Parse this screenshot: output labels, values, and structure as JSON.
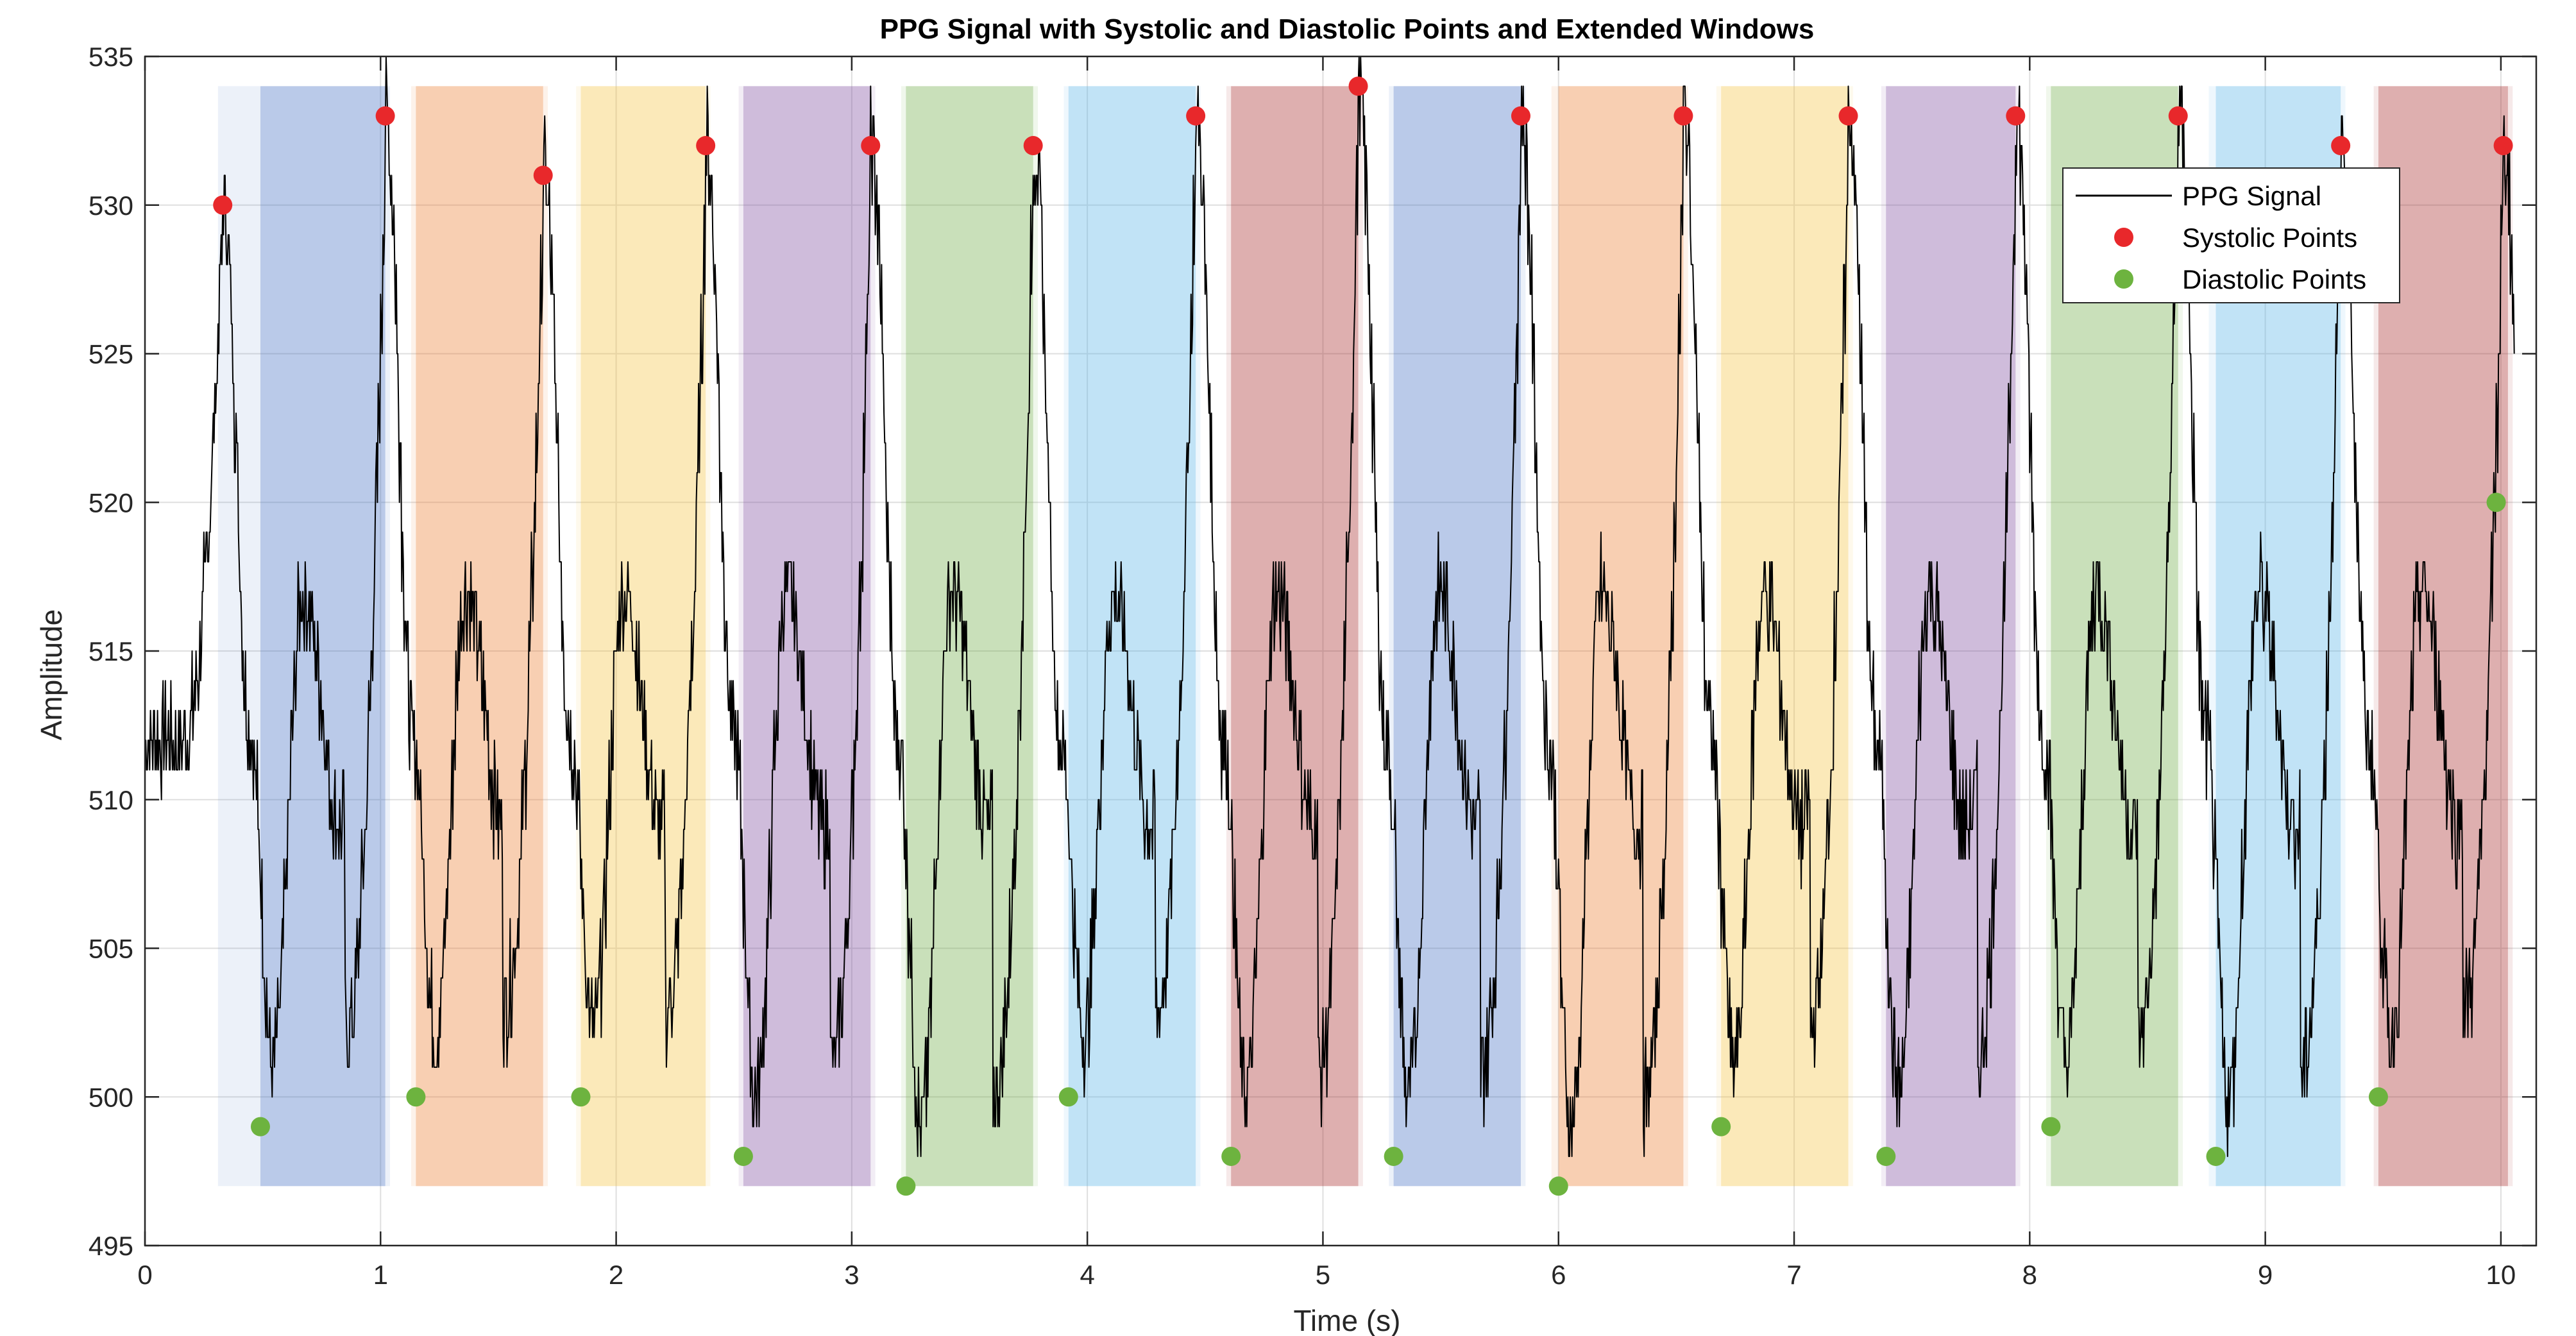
{
  "chart_data": {
    "type": "line",
    "title": "PPG Signal with Systolic and Diastolic Points and Extended Windows",
    "xlabel": "Time (s)",
    "ylabel": "Amplitude",
    "xlim": [
      0,
      10.15
    ],
    "ylim": [
      495,
      535
    ],
    "xticks": [
      0,
      1,
      2,
      3,
      4,
      5,
      6,
      7,
      8,
      9,
      10
    ],
    "yticks": [
      495,
      500,
      505,
      510,
      515,
      520,
      525,
      530,
      535
    ],
    "grid": true,
    "legend": {
      "position": "top-right",
      "entries": [
        "PPG Signal",
        "Systolic Points",
        "Diastolic Points"
      ]
    },
    "colors": {
      "signal": "#000000",
      "systolic": "#e8282b",
      "diastolic": "#6db33f",
      "windows": [
        "#4472c4",
        "#ed7d31",
        "#f5c342",
        "#7e4c9e",
        "#70ad47",
        "#5bb5e8",
        "#a52a2a"
      ]
    },
    "systolic_points": [
      {
        "t": 0.33,
        "amp": 530
      },
      {
        "t": 1.02,
        "amp": 533
      },
      {
        "t": 1.69,
        "amp": 531
      },
      {
        "t": 2.38,
        "amp": 532
      },
      {
        "t": 3.08,
        "amp": 532
      },
      {
        "t": 3.77,
        "amp": 532
      },
      {
        "t": 4.46,
        "amp": 533
      },
      {
        "t": 5.15,
        "amp": 534
      },
      {
        "t": 5.84,
        "amp": 533
      },
      {
        "t": 6.53,
        "amp": 533
      },
      {
        "t": 7.23,
        "amp": 533
      },
      {
        "t": 7.94,
        "amp": 533
      },
      {
        "t": 8.63,
        "amp": 533
      },
      {
        "t": 9.32,
        "amp": 532
      },
      {
        "t": 10.01,
        "amp": 532
      }
    ],
    "diastolic_points": [
      {
        "t": 0.49,
        "amp": 499
      },
      {
        "t": 1.15,
        "amp": 500
      },
      {
        "t": 1.85,
        "amp": 500
      },
      {
        "t": 2.54,
        "amp": 498
      },
      {
        "t": 3.23,
        "amp": 497
      },
      {
        "t": 3.92,
        "amp": 500
      },
      {
        "t": 4.61,
        "amp": 498
      },
      {
        "t": 5.3,
        "amp": 498
      },
      {
        "t": 6.0,
        "amp": 497
      },
      {
        "t": 6.69,
        "amp": 499
      },
      {
        "t": 7.39,
        "amp": 498
      },
      {
        "t": 8.09,
        "amp": 499
      },
      {
        "t": 8.79,
        "amp": 498
      },
      {
        "t": 9.48,
        "amp": 500
      },
      {
        "t": 9.98,
        "amp": 520
      }
    ],
    "windows": [
      {
        "start": 0.49,
        "end": 1.02
      },
      {
        "start": 1.15,
        "end": 1.69
      },
      {
        "start": 1.85,
        "end": 2.38
      },
      {
        "start": 2.54,
        "end": 3.08
      },
      {
        "start": 3.23,
        "end": 3.77
      },
      {
        "start": 3.92,
        "end": 4.46
      },
      {
        "start": 4.61,
        "end": 5.15
      },
      {
        "start": 5.3,
        "end": 5.84
      },
      {
        "start": 6.0,
        "end": 6.53
      },
      {
        "start": 6.69,
        "end": 7.23
      },
      {
        "start": 7.39,
        "end": 7.94
      },
      {
        "start": 8.09,
        "end": 8.63
      },
      {
        "start": 8.79,
        "end": 9.32
      },
      {
        "start": 9.48,
        "end": 10.03
      }
    ],
    "extended_windows": [
      {
        "start": 0.31,
        "end": 1.04
      },
      {
        "start": 1.13,
        "end": 1.71
      },
      {
        "start": 1.83,
        "end": 2.4
      },
      {
        "start": 2.52,
        "end": 3.1
      },
      {
        "start": 3.21,
        "end": 3.79
      },
      {
        "start": 3.9,
        "end": 4.48
      },
      {
        "start": 4.59,
        "end": 5.17
      },
      {
        "start": 5.28,
        "end": 5.86
      },
      {
        "start": 5.97,
        "end": 6.55
      },
      {
        "start": 6.67,
        "end": 7.25
      },
      {
        "start": 7.37,
        "end": 7.96
      },
      {
        "start": 8.07,
        "end": 8.65
      },
      {
        "start": 8.76,
        "end": 9.34
      },
      {
        "start": 9.46,
        "end": 10.05
      }
    ],
    "window_amp_range": [
      497,
      534
    ],
    "signal": {
      "fs": 100,
      "t_end": 10.05,
      "initial_level": 512,
      "wave_shape": {
        "rise": 0.17,
        "fall": 0.21,
        "dicrotic_peak_t": 0.34,
        "dicrotic_peak_amp": 517,
        "dicrotic_trough_t": 0.5,
        "dicrotic_trough_amp": 509
      }
    }
  }
}
